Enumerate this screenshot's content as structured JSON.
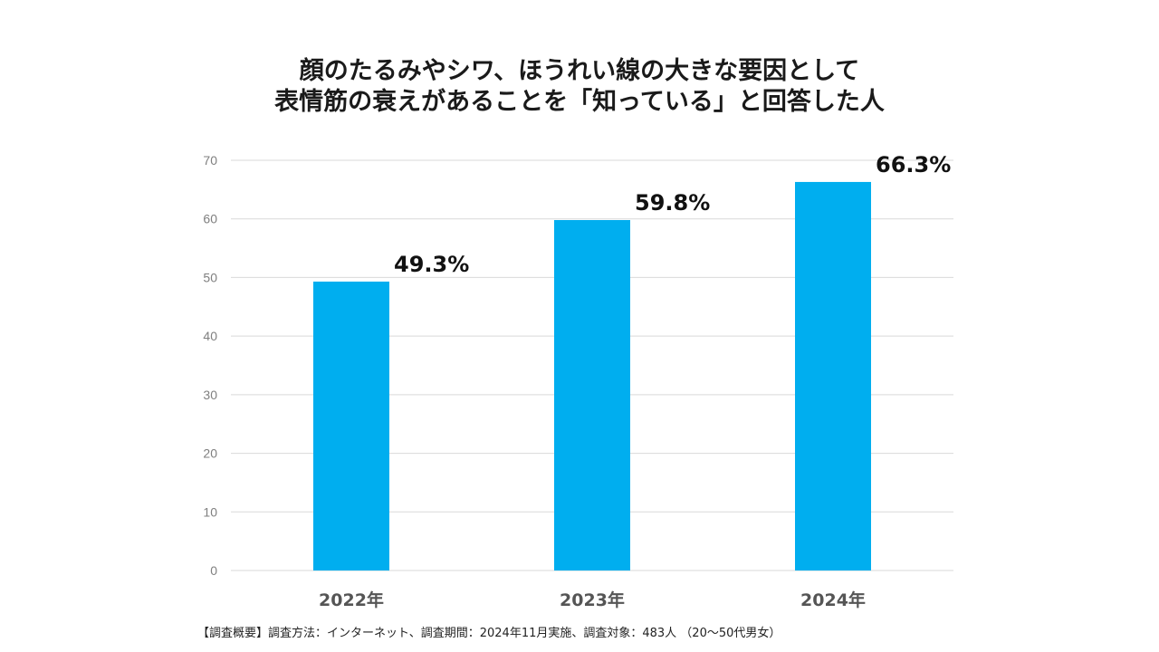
{
  "chart_data": {
    "type": "bar",
    "title": [
      "顔のたるみやシワ、ほうれい線の大きな要因として",
      "表情筋の衰えがあることを「知っている」と回答した人"
    ],
    "categories": [
      "2022年",
      "2023年",
      "2024年"
    ],
    "values": [
      49.3,
      59.8,
      66.3
    ],
    "data_labels": [
      "49.3%",
      "59.8%",
      "66.3%"
    ],
    "yticks": [
      0,
      10,
      20,
      30,
      40,
      50,
      60,
      70
    ],
    "ylim": [
      0,
      70
    ],
    "xlabel": "",
    "ylabel": "",
    "grid": true,
    "legend": "none",
    "bar_color": "#00AEEF",
    "grid_color": "#d9d9d9"
  },
  "footnote": "【調査概要】調査方法：インターネット、調査期間：2024年11月実施、調査対象：483人 （20～50代男女）"
}
